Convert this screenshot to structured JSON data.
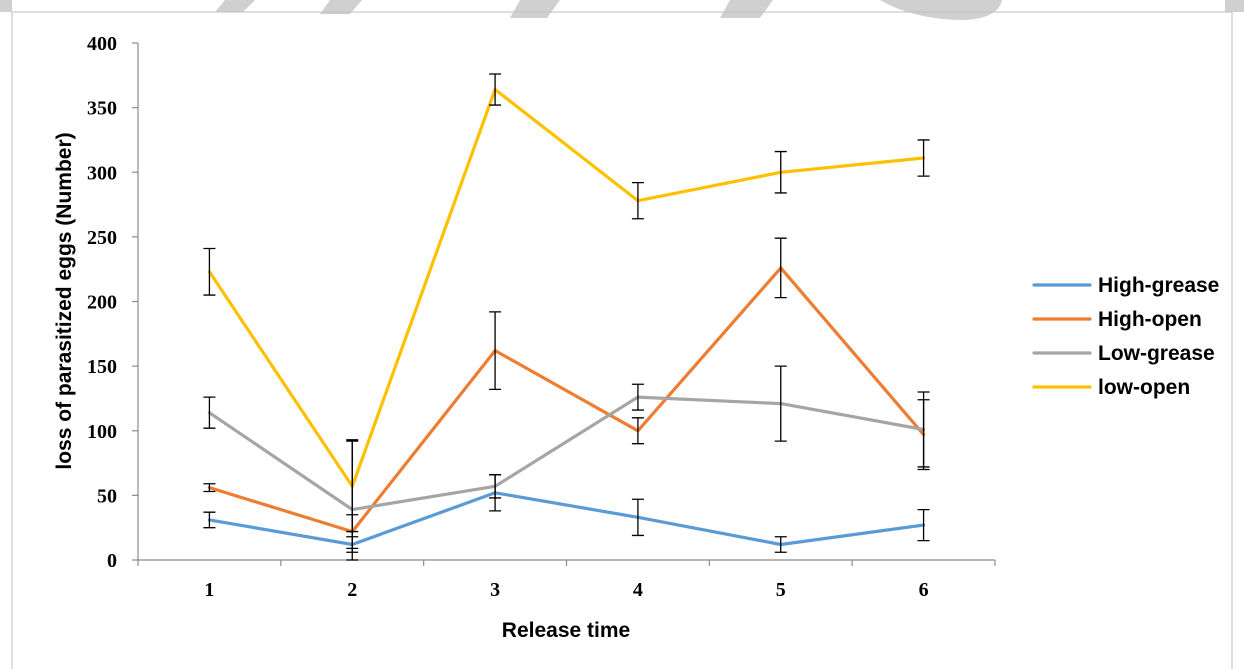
{
  "chart_data": {
    "type": "line",
    "title": "",
    "xlabel": "Release time",
    "ylabel": "loss of parasitized eggs (Number)",
    "categories": [
      "1",
      "2",
      "3",
      "4",
      "5",
      "6"
    ],
    "ylim": [
      0,
      400
    ],
    "yticks": [
      "0",
      "50",
      "100",
      "150",
      "200",
      "250",
      "300",
      "350",
      "400"
    ],
    "grid": false,
    "legend_position": "right",
    "series": [
      {
        "name": "High-grease",
        "color": "#5b9bd5",
        "values": [
          31,
          12,
          52,
          33,
          12,
          27
        ],
        "error": [
          6,
          6,
          14,
          14,
          6,
          12
        ]
      },
      {
        "name": "High-open",
        "color": "#ed7d31",
        "values": [
          56,
          22,
          162,
          100,
          226,
          97
        ],
        "error": [
          3,
          13,
          30,
          10,
          23,
          27
        ]
      },
      {
        "name": "Low-grease",
        "color": "#a5a5a5",
        "values": [
          114,
          39,
          57,
          126,
          121,
          101
        ],
        "error": [
          12,
          54,
          9,
          10,
          29,
          29
        ]
      },
      {
        "name": "low-open",
        "color": "#ffc000",
        "values": [
          223,
          57,
          364,
          278,
          300,
          311
        ],
        "error": [
          18,
          35,
          12,
          14,
          16,
          14
        ]
      }
    ]
  }
}
